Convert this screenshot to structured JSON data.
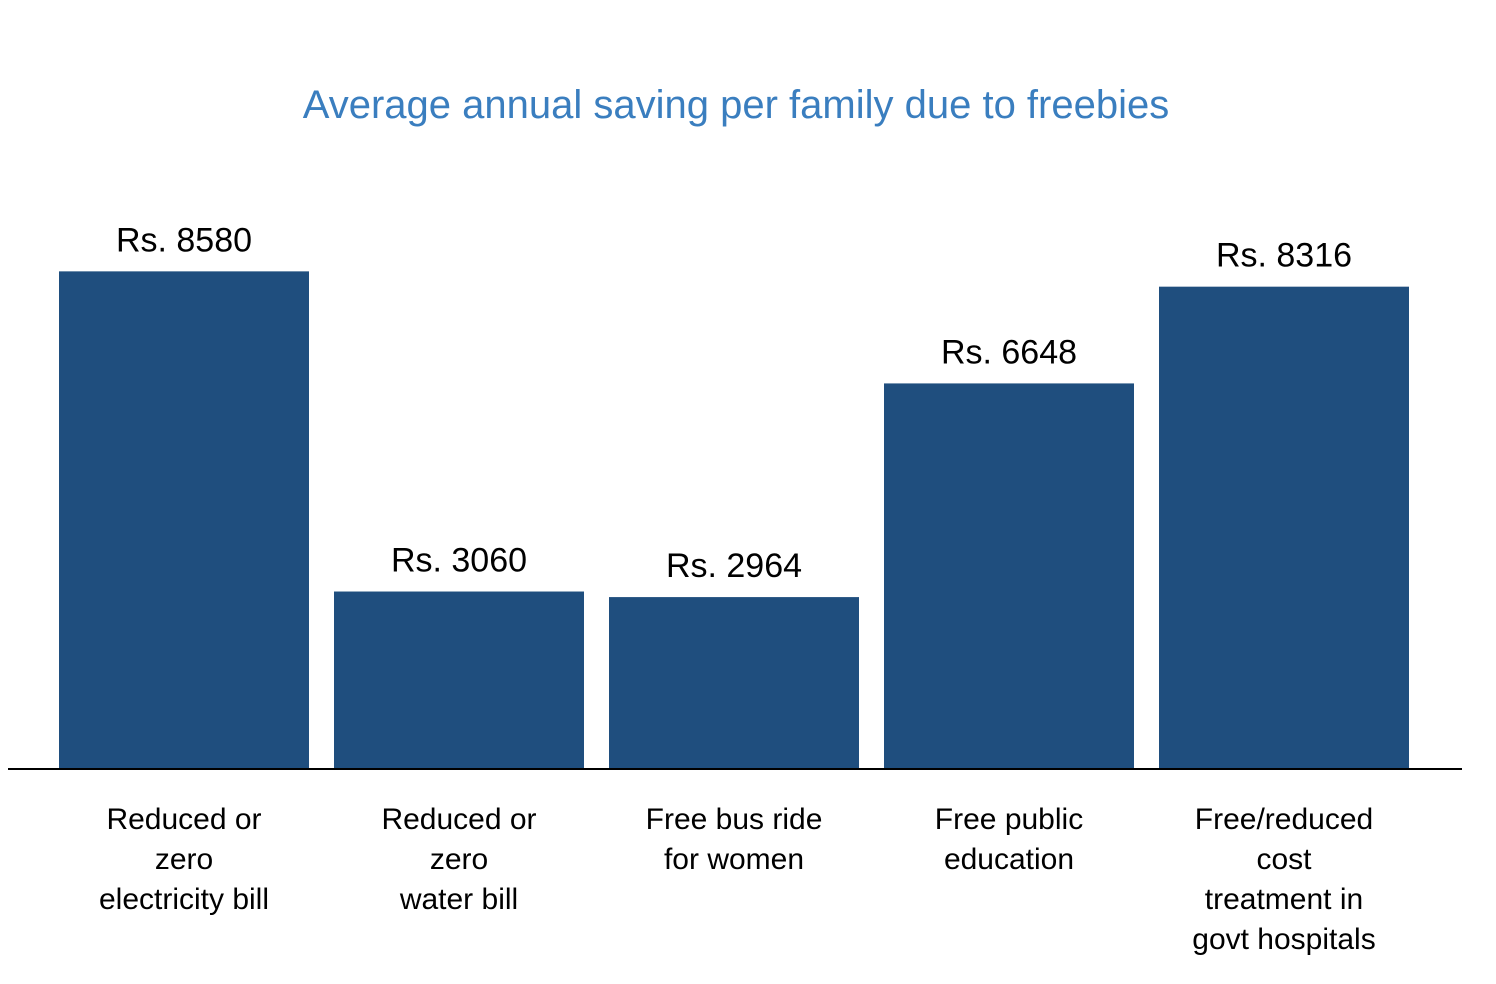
{
  "chart_data": {
    "type": "bar",
    "title": "Average annual saving per family due to freebies",
    "xlabel": "",
    "ylabel": "",
    "ylim": [
      0,
      10000
    ],
    "grid": false,
    "categories": [
      "Reduced or zero electricity bill",
      "Reduced or zero water bill",
      "Free bus ride for women",
      "Free public education",
      "Free/reduced cost treatment in govt hospitals"
    ],
    "category_lines": [
      [
        "Reduced or",
        "zero",
        "electricity bill"
      ],
      [
        "Reduced or",
        "zero",
        "water bill"
      ],
      [
        "Free bus ride",
        "for women"
      ],
      [
        "Free public",
        "education"
      ],
      [
        "Free/reduced",
        "cost",
        "treatment in",
        "govt hospitals"
      ]
    ],
    "values": [
      8580,
      3060,
      2964,
      6648,
      8316
    ],
    "data_labels": [
      "Rs. 8580",
      "Rs. 3060",
      "Rs. 2964",
      "Rs. 6648",
      "Rs. 8316"
    ]
  },
  "colors": {
    "title": "#3a7ebf",
    "bar": "#1f4e7e",
    "axis": "#000000"
  }
}
